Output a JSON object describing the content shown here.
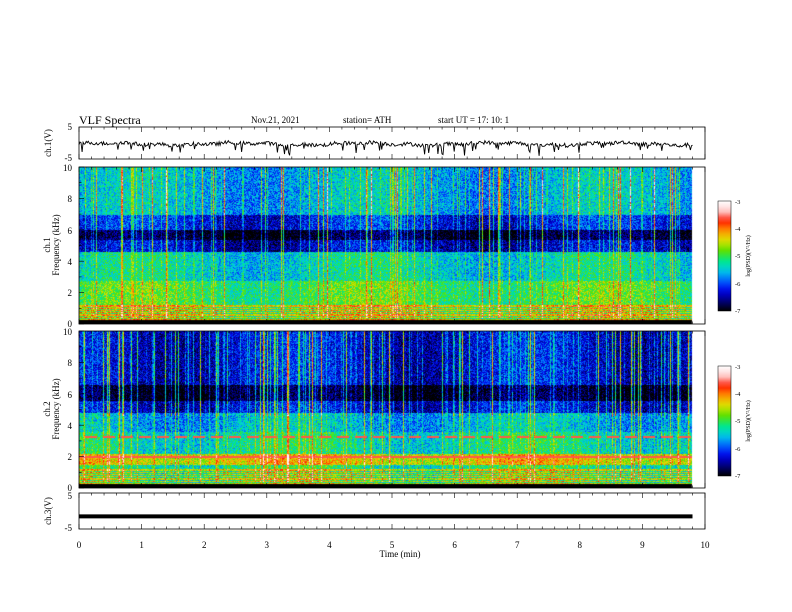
{
  "header": {
    "title": "VLF  Spectra",
    "date": "Nov.21, 2021",
    "station": "station= ATH",
    "start_ut": "start  UT  =    17: 10: 1"
  },
  "chart_data": [
    {
      "type": "line",
      "name": "ch1-waveform",
      "ylabel": "ch.1(V)",
      "ylim": [
        -5,
        5
      ],
      "ytick_labels": [
        "5",
        "-5"
      ],
      "xlim": [
        0,
        10
      ],
      "x_end": 9.8,
      "baseline": -0.3,
      "fluctuation": 1.2
    },
    {
      "type": "heatmap",
      "name": "ch1-spectrogram",
      "ylabel": "Frequency  (kHz)",
      "channel_label": "ch.1",
      "ylim": [
        0,
        10
      ],
      "ytick_labels": [
        "10",
        "8",
        "6",
        "4",
        "2",
        "0"
      ],
      "xlim": [
        0,
        10
      ],
      "x_end": 9.8,
      "colorbar": {
        "label": "log(PSD)(V²/Hz)",
        "range": [
          -7,
          -3
        ],
        "tick_labels": [
          "-3",
          "-4",
          "-5",
          "-6",
          "-7"
        ]
      },
      "bands": [
        {
          "freq": [
            0,
            0.3
          ],
          "value": -7.0
        },
        {
          "freq": [
            0.3,
            1.2
          ],
          "value": -5.0
        },
        {
          "freq": [
            1.2,
            2.8
          ],
          "value": -5.0
        },
        {
          "freq": [
            2.8,
            4.6
          ],
          "value": -5.4
        },
        {
          "freq": [
            4.6,
            5.4
          ],
          "value": -6.4
        },
        {
          "freq": [
            5.4,
            6.0
          ],
          "value": -6.9
        },
        {
          "freq": [
            6.0,
            7.0
          ],
          "value": -6.2
        },
        {
          "freq": [
            7.0,
            10.0
          ],
          "value": -5.6
        }
      ]
    },
    {
      "type": "heatmap",
      "name": "ch2-spectrogram",
      "ylabel": "Frequency  (kHz)",
      "channel_label": "ch.2",
      "ylim": [
        0,
        10
      ],
      "ytick_labels": [
        "10",
        "8",
        "6",
        "4",
        "2",
        "0"
      ],
      "xlim": [
        0,
        10
      ],
      "x_end": 9.8,
      "colorbar": {
        "label": "log(PSD)(V²/Hz)",
        "range": [
          -7,
          -3
        ],
        "tick_labels": [
          "-3",
          "-4",
          "-5",
          "-6",
          "-7"
        ]
      },
      "bands": [
        {
          "freq": [
            0,
            0.3
          ],
          "value": -7.0
        },
        {
          "freq": [
            0.3,
            1.5
          ],
          "value": -5.2
        },
        {
          "freq": [
            1.5,
            2.2
          ],
          "value": -4.4
        },
        {
          "freq": [
            2.2,
            3.6
          ],
          "value": -5.3
        },
        {
          "freq": [
            3.6,
            4.8
          ],
          "value": -5.6
        },
        {
          "freq": [
            4.8,
            5.6
          ],
          "value": -6.3
        },
        {
          "freq": [
            5.6,
            6.6
          ],
          "value": -6.9
        },
        {
          "freq": [
            6.6,
            10.0
          ],
          "value": -6.3
        }
      ],
      "tone_lines_khz": [
        3.3,
        2.0
      ]
    },
    {
      "type": "line",
      "name": "ch3-waveform",
      "ylabel": "ch.3(V)",
      "ylim": [
        -5,
        5
      ],
      "ytick_labels": [
        "5",
        "-5"
      ],
      "xlim": [
        0,
        10
      ],
      "x_end": 9.8,
      "baseline": -1.5,
      "fluctuation": 0
    }
  ],
  "x_axis": {
    "label": "Time  (min)",
    "tick_labels": [
      "0",
      "1",
      "2",
      "3",
      "4",
      "5",
      "6",
      "7",
      "8",
      "9",
      "10"
    ]
  },
  "colors": {
    "colormap": [
      "#000000",
      "#00007a",
      "#0000e6",
      "#0060ff",
      "#00c8e8",
      "#00e88c",
      "#5ae000",
      "#d8e400",
      "#ff9800",
      "#ff1800",
      "#ffd0d0",
      "#ffffff"
    ],
    "line": "#000000"
  }
}
